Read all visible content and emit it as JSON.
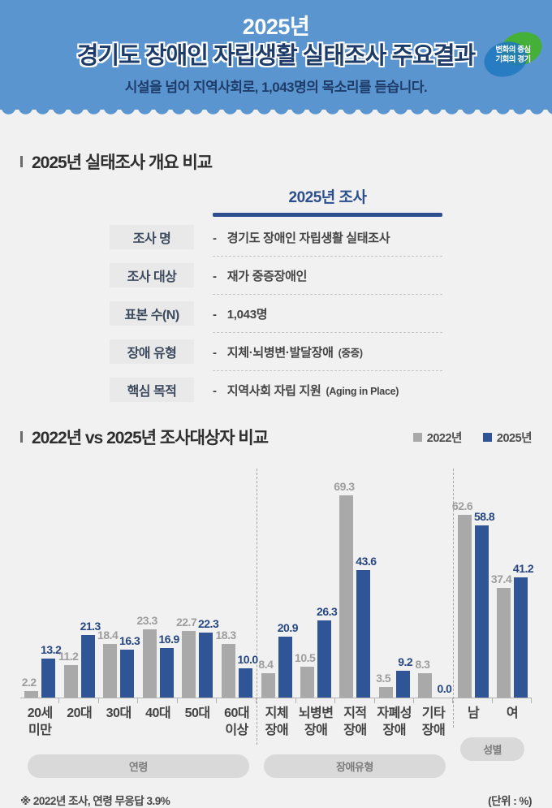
{
  "colors": {
    "header_bg": "#5b95cf",
    "page_bg": "#f1f1f2",
    "navy_accent": "#2d4e8e",
    "bar_2022": "#a9a9a9",
    "bar_2025": "#2f5597"
  },
  "header": {
    "year": "2025년",
    "title": "경기도 장애인 자립생활 실태조사 주요결과",
    "subtitle_prefix": "시설을 넘어 지역사회로, ",
    "subtitle_bold": "1,043명",
    "subtitle_suffix": "의 목소리를 듣습니다.",
    "logo_line1": "변화의 중심",
    "logo_line2": "기회의 경기"
  },
  "overview": {
    "section_title": "2025년 실태조사 개요 비교",
    "column_header": "2025년 조사",
    "bullet": "-",
    "rows": [
      {
        "label": "조사 명",
        "value": "경기도 장애인 자립생활 실태조사",
        "note": ""
      },
      {
        "label": "조사 대상",
        "value": "재가 중증장애인",
        "note": ""
      },
      {
        "label": "표본 수(N)",
        "value": "1,043명",
        "note": ""
      },
      {
        "label": "장애 유형",
        "value": "지체·뇌병변·발달장애",
        "note": "(중증)"
      },
      {
        "label": "핵심 목적",
        "value": "지역사회 자립 지원",
        "note": "(Aging in Place)"
      }
    ]
  },
  "comparison": {
    "section_title": "2022년 vs 2025년 조사대상자 비교",
    "legend": [
      {
        "name": "2022년",
        "color": "#a9a9a9"
      },
      {
        "name": "2025년",
        "color": "#2f5597"
      }
    ],
    "footnote_left": "※ 2022년 조사, 연령 무응답 3.9%",
    "footnote_right": "(단위 : %)"
  },
  "chart_data": {
    "type": "bar",
    "title": "2022년 vs 2025년 조사대상자 비교",
    "unit": "%",
    "ylim": [
      0,
      78
    ],
    "grid": false,
    "legend_position": "top-right",
    "bar_colors": {
      "2022년": "#a9a9a9",
      "2025년": "#2f5597"
    },
    "groups": [
      {
        "label": "연령",
        "categories": [
          "20세 미만",
          "20대",
          "30대",
          "40대",
          "50대",
          "60대 이상"
        ],
        "series": [
          {
            "name": "2022년",
            "values": [
              2.2,
              11.2,
              18.4,
              23.3,
              22.7,
              18.3
            ]
          },
          {
            "name": "2025년",
            "values": [
              13.2,
              21.3,
              16.3,
              16.9,
              22.3,
              10.0
            ]
          }
        ]
      },
      {
        "label": "장애유형",
        "categories": [
          "지체 장애",
          "뇌병변 장애",
          "지적 장애",
          "자폐성 장애",
          "기타 장애"
        ],
        "series": [
          {
            "name": "2022년",
            "values": [
              8.4,
              10.5,
              69.3,
              3.5,
              8.3
            ]
          },
          {
            "name": "2025년",
            "values": [
              20.9,
              26.3,
              43.6,
              9.2,
              0.0
            ]
          }
        ]
      },
      {
        "label": "성별",
        "categories": [
          "남",
          "여"
        ],
        "series": [
          {
            "name": "2022년",
            "values": [
              62.6,
              37.4
            ]
          },
          {
            "name": "2025년",
            "values": [
              58.8,
              41.2
            ]
          }
        ]
      }
    ]
  }
}
